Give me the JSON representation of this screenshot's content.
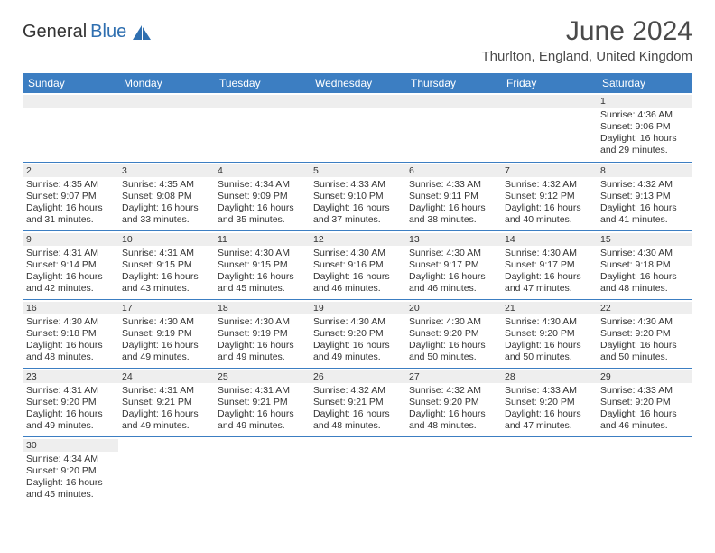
{
  "logo": {
    "text_dark": "General",
    "text_blue": "Blue",
    "sail_color": "#2f6fb0"
  },
  "title": "June 2024",
  "location": "Thurlton, England, United Kingdom",
  "header_bg": "#3c7ec2",
  "daynames": [
    "Sunday",
    "Monday",
    "Tuesday",
    "Wednesday",
    "Thursday",
    "Friday",
    "Saturday"
  ],
  "colors": {
    "header_bg": "#3c7ec2",
    "header_fg": "#ffffff",
    "cell_head_bg": "#eeeeee",
    "text": "#333333",
    "border": "#3c7ec2",
    "page_bg": "#ffffff"
  },
  "fonts": {
    "title_size": 30,
    "location_size": 15,
    "dayname_size": 12,
    "cell_size": 10.5
  },
  "weeks": [
    [
      null,
      null,
      null,
      null,
      null,
      null,
      {
        "n": "1",
        "sr": "4:36 AM",
        "ss": "9:06 PM",
        "dl": "16 hours and 29 minutes."
      }
    ],
    [
      {
        "n": "2",
        "sr": "4:35 AM",
        "ss": "9:07 PM",
        "dl": "16 hours and 31 minutes."
      },
      {
        "n": "3",
        "sr": "4:35 AM",
        "ss": "9:08 PM",
        "dl": "16 hours and 33 minutes."
      },
      {
        "n": "4",
        "sr": "4:34 AM",
        "ss": "9:09 PM",
        "dl": "16 hours and 35 minutes."
      },
      {
        "n": "5",
        "sr": "4:33 AM",
        "ss": "9:10 PM",
        "dl": "16 hours and 37 minutes."
      },
      {
        "n": "6",
        "sr": "4:33 AM",
        "ss": "9:11 PM",
        "dl": "16 hours and 38 minutes."
      },
      {
        "n": "7",
        "sr": "4:32 AM",
        "ss": "9:12 PM",
        "dl": "16 hours and 40 minutes."
      },
      {
        "n": "8",
        "sr": "4:32 AM",
        "ss": "9:13 PM",
        "dl": "16 hours and 41 minutes."
      }
    ],
    [
      {
        "n": "9",
        "sr": "4:31 AM",
        "ss": "9:14 PM",
        "dl": "16 hours and 42 minutes."
      },
      {
        "n": "10",
        "sr": "4:31 AM",
        "ss": "9:15 PM",
        "dl": "16 hours and 43 minutes."
      },
      {
        "n": "11",
        "sr": "4:30 AM",
        "ss": "9:15 PM",
        "dl": "16 hours and 45 minutes."
      },
      {
        "n": "12",
        "sr": "4:30 AM",
        "ss": "9:16 PM",
        "dl": "16 hours and 46 minutes."
      },
      {
        "n": "13",
        "sr": "4:30 AM",
        "ss": "9:17 PM",
        "dl": "16 hours and 46 minutes."
      },
      {
        "n": "14",
        "sr": "4:30 AM",
        "ss": "9:17 PM",
        "dl": "16 hours and 47 minutes."
      },
      {
        "n": "15",
        "sr": "4:30 AM",
        "ss": "9:18 PM",
        "dl": "16 hours and 48 minutes."
      }
    ],
    [
      {
        "n": "16",
        "sr": "4:30 AM",
        "ss": "9:18 PM",
        "dl": "16 hours and 48 minutes."
      },
      {
        "n": "17",
        "sr": "4:30 AM",
        "ss": "9:19 PM",
        "dl": "16 hours and 49 minutes."
      },
      {
        "n": "18",
        "sr": "4:30 AM",
        "ss": "9:19 PM",
        "dl": "16 hours and 49 minutes."
      },
      {
        "n": "19",
        "sr": "4:30 AM",
        "ss": "9:20 PM",
        "dl": "16 hours and 49 minutes."
      },
      {
        "n": "20",
        "sr": "4:30 AM",
        "ss": "9:20 PM",
        "dl": "16 hours and 50 minutes."
      },
      {
        "n": "21",
        "sr": "4:30 AM",
        "ss": "9:20 PM",
        "dl": "16 hours and 50 minutes."
      },
      {
        "n": "22",
        "sr": "4:30 AM",
        "ss": "9:20 PM",
        "dl": "16 hours and 50 minutes."
      }
    ],
    [
      {
        "n": "23",
        "sr": "4:31 AM",
        "ss": "9:20 PM",
        "dl": "16 hours and 49 minutes."
      },
      {
        "n": "24",
        "sr": "4:31 AM",
        "ss": "9:21 PM",
        "dl": "16 hours and 49 minutes."
      },
      {
        "n": "25",
        "sr": "4:31 AM",
        "ss": "9:21 PM",
        "dl": "16 hours and 49 minutes."
      },
      {
        "n": "26",
        "sr": "4:32 AM",
        "ss": "9:21 PM",
        "dl": "16 hours and 48 minutes."
      },
      {
        "n": "27",
        "sr": "4:32 AM",
        "ss": "9:20 PM",
        "dl": "16 hours and 48 minutes."
      },
      {
        "n": "28",
        "sr": "4:33 AM",
        "ss": "9:20 PM",
        "dl": "16 hours and 47 minutes."
      },
      {
        "n": "29",
        "sr": "4:33 AM",
        "ss": "9:20 PM",
        "dl": "16 hours and 46 minutes."
      }
    ],
    [
      {
        "n": "30",
        "sr": "4:34 AM",
        "ss": "9:20 PM",
        "dl": "16 hours and 45 minutes."
      },
      null,
      null,
      null,
      null,
      null,
      null
    ]
  ],
  "labels": {
    "sunrise": "Sunrise:",
    "sunset": "Sunset:",
    "daylight": "Daylight:"
  }
}
